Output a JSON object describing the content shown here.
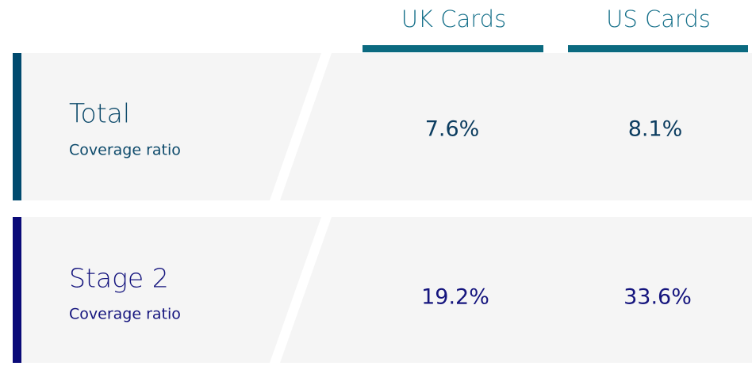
{
  "table": {
    "columns": [
      "UK Cards",
      "US Cards"
    ],
    "rows": [
      {
        "label": "Total",
        "sublabel": "Coverage ratio",
        "values": [
          "7.6%",
          "8.1%"
        ]
      },
      {
        "label": "Stage 2",
        "sublabel": "Coverage ratio",
        "values": [
          "19.2%",
          "33.6%"
        ]
      }
    ]
  }
}
